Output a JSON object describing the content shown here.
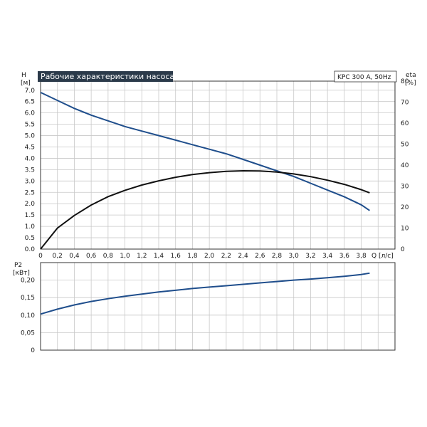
{
  "title": "Рабочие характеристики насоса",
  "model": "KPC 300 A, 50Hz",
  "colors": {
    "head": "#1f4e8c",
    "eta": "#111111",
    "power": "#1f4e8c",
    "title_bg": "#2b3a4a"
  },
  "chart_data": [
    {
      "type": "line",
      "name": "upper",
      "y_left_label": [
        "H",
        "[м]"
      ],
      "y_right_label": [
        "eta",
        "[%]"
      ],
      "x_label": "Q [л/с]",
      "x_ticks": [
        "0",
        "0,2",
        "0,4",
        "0,6",
        "0,8",
        "1,0",
        "1,2",
        "1,4",
        "1,6",
        "1,8",
        "2,0",
        "2,2",
        "2,4",
        "2,6",
        "2,8",
        "3,0",
        "3,2",
        "3,4",
        "3,6",
        "3,8"
      ],
      "y_left_ticks": [
        "0.0",
        "0.5",
        "1.0",
        "1.5",
        "2.0",
        "2.5",
        "3.0",
        "3.5",
        "4.0",
        "4.5",
        "5.0",
        "5.5",
        "6.0",
        "6.5",
        "7.0"
      ],
      "y_right_ticks": [
        "0",
        "10",
        "20",
        "30",
        "40",
        "50",
        "60",
        "70",
        "80"
      ],
      "xlim": [
        0,
        4.2
      ],
      "ylim_left": [
        0,
        7.4
      ],
      "ylim_right": [
        0,
        80
      ],
      "grid": true,
      "series": [
        {
          "axis": "left",
          "x": [
            0,
            0.2,
            0.4,
            0.6,
            0.8,
            1.0,
            1.2,
            1.4,
            1.6,
            1.8,
            2.0,
            2.2,
            2.4,
            2.6,
            2.8,
            3.0,
            3.2,
            3.4,
            3.6,
            3.8,
            3.9
          ],
          "y": [
            6.9,
            6.55,
            6.2,
            5.9,
            5.65,
            5.4,
            5.2,
            5.0,
            4.8,
            4.6,
            4.4,
            4.2,
            3.95,
            3.7,
            3.45,
            3.2,
            2.9,
            2.6,
            2.3,
            1.95,
            1.7
          ]
        },
        {
          "axis": "right",
          "x": [
            0,
            0.2,
            0.4,
            0.6,
            0.8,
            1.0,
            1.2,
            1.4,
            1.6,
            1.8,
            2.0,
            2.2,
            2.4,
            2.6,
            2.8,
            3.0,
            3.2,
            3.4,
            3.6,
            3.8,
            3.9
          ],
          "y": [
            0,
            10,
            16,
            21,
            25,
            28,
            30.5,
            32.5,
            34.2,
            35.5,
            36.4,
            37,
            37.3,
            37.2,
            36.7,
            35.8,
            34.5,
            32.8,
            30.8,
            28.3,
            26.8
          ]
        }
      ]
    },
    {
      "type": "line",
      "name": "lower",
      "y_label": [
        "P2",
        "[кВт]"
      ],
      "y_ticks": [
        "0",
        "0,05",
        "0,10",
        "0,15",
        "0,20"
      ],
      "xlim": [
        0,
        4.2
      ],
      "ylim": [
        0,
        0.25
      ],
      "grid": true,
      "series": [
        {
          "x": [
            0,
            0.2,
            0.4,
            0.6,
            0.8,
            1.0,
            1.2,
            1.4,
            1.6,
            1.8,
            2.0,
            2.2,
            2.4,
            2.6,
            2.8,
            3.0,
            3.2,
            3.4,
            3.6,
            3.8,
            3.9
          ],
          "y": [
            0.103,
            0.117,
            0.129,
            0.139,
            0.147,
            0.154,
            0.16,
            0.166,
            0.171,
            0.176,
            0.18,
            0.184,
            0.188,
            0.192,
            0.196,
            0.2,
            0.203,
            0.207,
            0.211,
            0.216,
            0.22
          ]
        }
      ]
    }
  ]
}
